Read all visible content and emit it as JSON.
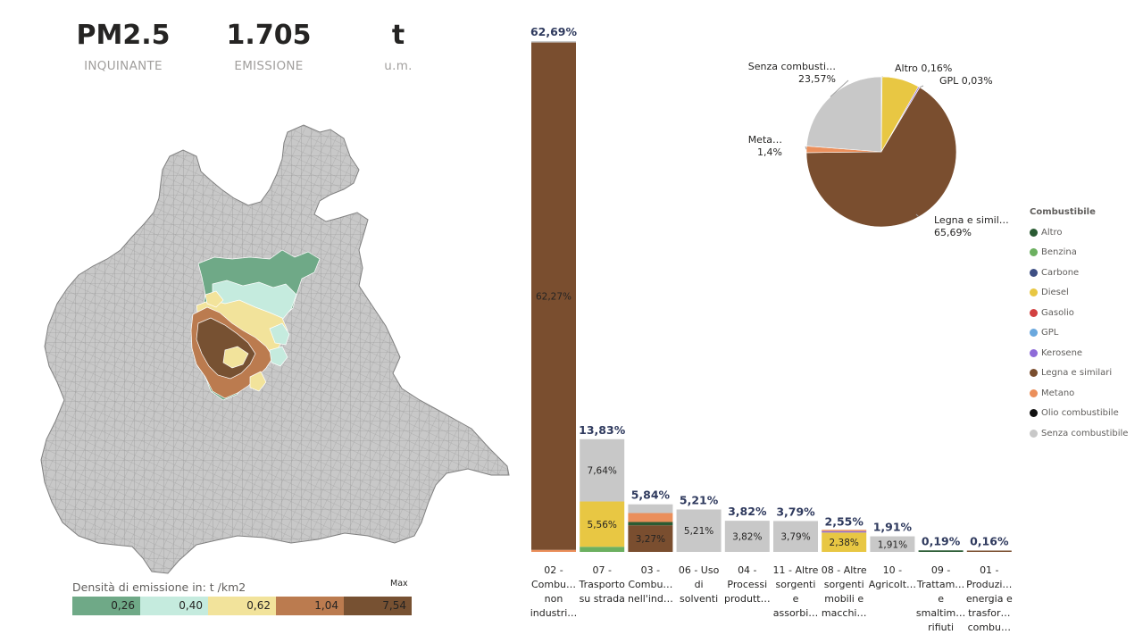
{
  "kpis": [
    {
      "value": "PM2.5",
      "label": "INQUINANTE"
    },
    {
      "value": "1.705",
      "label": "EMISSIONE"
    },
    {
      "value": "t",
      "label": "u.m."
    }
  ],
  "density_legend": {
    "title": "Densità di emissione in:  t /km2",
    "max_label": "Max",
    "segments": [
      {
        "value": "0,26",
        "color": "#6fa987"
      },
      {
        "value": "0,40",
        "color": "#c5ebde"
      },
      {
        "value": "0,62",
        "color": "#f2e39b"
      },
      {
        "value": "1,04",
        "color": "#bb7b4f"
      },
      {
        "value": "7,54",
        "color": "#775132"
      }
    ]
  },
  "legend": {
    "title": "Combustibile",
    "items": [
      {
        "label": "Altro",
        "color": "#2a5b33"
      },
      {
        "label": "Benzina",
        "color": "#6cb060"
      },
      {
        "label": "Carbone",
        "color": "#3e4f84"
      },
      {
        "label": "Diesel",
        "color": "#e8c743"
      },
      {
        "label": "Gasolio",
        "color": "#d24141"
      },
      {
        "label": "GPL",
        "color": "#6aa8de"
      },
      {
        "label": "Kerosene",
        "color": "#8e6bd8"
      },
      {
        "label": "Legna e similari",
        "color": "#7a4e2f"
      },
      {
        "label": "Metano",
        "color": "#eb8f5b"
      },
      {
        "label": "Olio combustibile",
        "color": "#111111"
      },
      {
        "label": "Senza combustibile",
        "color": "#c8c8c8"
      }
    ]
  },
  "chart_data": [
    {
      "type": "bar",
      "stacked": true,
      "ylim": [
        0,
        62.69
      ],
      "categories": [
        "02 - Combu… non industri…",
        "07 - Trasporto su strada",
        "03 - Combu… nell'ind…",
        "06 - Uso di solventi",
        "04 - Processi produtt…",
        "11 - Altre sorgenti e assorbi…",
        "08 - Altre sorgenti mobili e macchi…",
        "10 - Agricolt…",
        "09 - Trattam… e smaltim… rifiuti",
        "01 - Produzi… energia e trasfor… combu…"
      ],
      "category_lines": [
        [
          "02 -",
          "Combu…",
          "non",
          "industri…"
        ],
        [
          "07 -",
          "Trasporto",
          "su strada"
        ],
        [
          "03 -",
          "Combu…",
          "nell'ind…"
        ],
        [
          "06 - Uso",
          "di",
          "solventi"
        ],
        [
          "04 -",
          "Processi",
          "produtt…"
        ],
        [
          "11 - Altre",
          "sorgenti",
          "e",
          "assorbi…"
        ],
        [
          "08 - Altre",
          "sorgenti",
          "mobili e",
          "macchi…"
        ],
        [
          "10 -",
          "Agricolt…"
        ],
        [
          "09 -",
          "Trattam…",
          "e",
          "smaltim…",
          "rifiuti"
        ],
        [
          "01 -",
          "Produzi…",
          "energia e",
          "trasfor…",
          "combu…"
        ]
      ],
      "totals": [
        "62,69%",
        "13,83%",
        "5,84%",
        "5,21%",
        "3,82%",
        "3,79%",
        "2,55%",
        "1,91%",
        "0,19%",
        "0,16%"
      ],
      "total_values": [
        62.69,
        13.83,
        5.84,
        5.21,
        3.82,
        3.79,
        2.55,
        1.91,
        0.19,
        0.16
      ],
      "stacks": [
        [
          {
            "fuel": "Metano",
            "value": 0.25
          },
          {
            "fuel": "Legna e similari",
            "value": 62.27,
            "label": "62,27%"
          },
          {
            "fuel": "Senza combustibile",
            "value": 0.17
          }
        ],
        [
          {
            "fuel": "Benzina",
            "value": 0.63
          },
          {
            "fuel": "Diesel",
            "value": 5.56,
            "label": "5,56%"
          },
          {
            "fuel": "Senza combustibile",
            "value": 7.64,
            "label": "7,64%"
          }
        ],
        [
          {
            "fuel": "Legna e similari",
            "value": 3.27,
            "label": "3,27%"
          },
          {
            "fuel": "Altro",
            "value": 0.4
          },
          {
            "fuel": "Metano",
            "value": 1.1
          },
          {
            "fuel": "Senza combustibile",
            "value": 1.07
          }
        ],
        [
          {
            "fuel": "Senza combustibile",
            "value": 5.21,
            "label": "5,21%"
          }
        ],
        [
          {
            "fuel": "Senza combustibile",
            "value": 3.82,
            "label": "3,82%"
          }
        ],
        [
          {
            "fuel": "Senza combustibile",
            "value": 3.79,
            "label": "3,79%"
          }
        ],
        [
          {
            "fuel": "Diesel",
            "value": 2.38,
            "label": "2,38%"
          },
          {
            "fuel": "Kerosene",
            "value": 0.09
          },
          {
            "fuel": "Metano",
            "value": 0.08
          }
        ],
        [
          {
            "fuel": "Senza combustibile",
            "value": 1.91,
            "label": "1,91%"
          }
        ],
        [
          {
            "fuel": "Altro",
            "value": 0.19
          }
        ],
        [
          {
            "fuel": "Legna e similari",
            "value": 0.16
          }
        ]
      ]
    },
    {
      "type": "pie",
      "slices": [
        {
          "fuel": "Altro",
          "value": 0.16,
          "label_lines": [
            "Altro 0,16%"
          ]
        },
        {
          "fuel": "Diesel",
          "value": 8.0,
          "label_lines": []
        },
        {
          "fuel": "Kerosene",
          "value": 0.3,
          "label_lines": []
        },
        {
          "fuel": "GPL",
          "value": 0.03,
          "label_lines": [
            "GPL 0,03%"
          ]
        },
        {
          "fuel": "Legna e similari",
          "value": 65.69,
          "label_lines": [
            "Legna e simil…",
            "65,69%"
          ]
        },
        {
          "fuel": "Metano",
          "value": 1.4,
          "label_lines": [
            "Meta…",
            "1,4%"
          ]
        },
        {
          "fuel": "Senza combustibile",
          "value": 23.57,
          "label_lines": [
            "Senza combusti…",
            "23,57%"
          ]
        }
      ]
    }
  ]
}
